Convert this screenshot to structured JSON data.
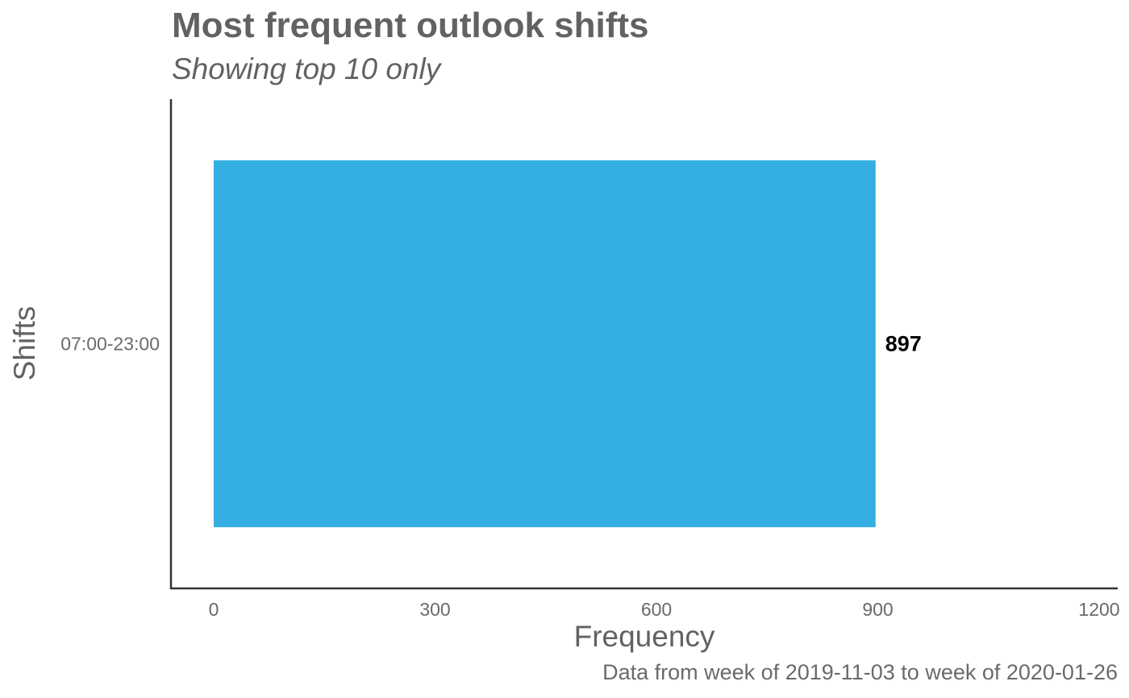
{
  "chart_data": {
    "type": "bar",
    "orientation": "horizontal",
    "title": "Most frequent outlook shifts",
    "subtitle": "Showing top 10 only",
    "caption": "Data from week of 2019-11-03 to week of 2020-01-26",
    "xlabel": "Frequency",
    "ylabel": "Shifts",
    "categories": [
      "07:00-23:00"
    ],
    "values": [
      897
    ],
    "data_labels": [
      "897"
    ],
    "xlim": [
      0,
      1200
    ],
    "x_ticks": [
      0,
      300,
      600,
      900,
      1200
    ],
    "x_tick_labels": [
      "0",
      "300",
      "600",
      "900",
      "1200"
    ],
    "grid": false,
    "legend": "none",
    "bar_color": "#35AFE2"
  }
}
